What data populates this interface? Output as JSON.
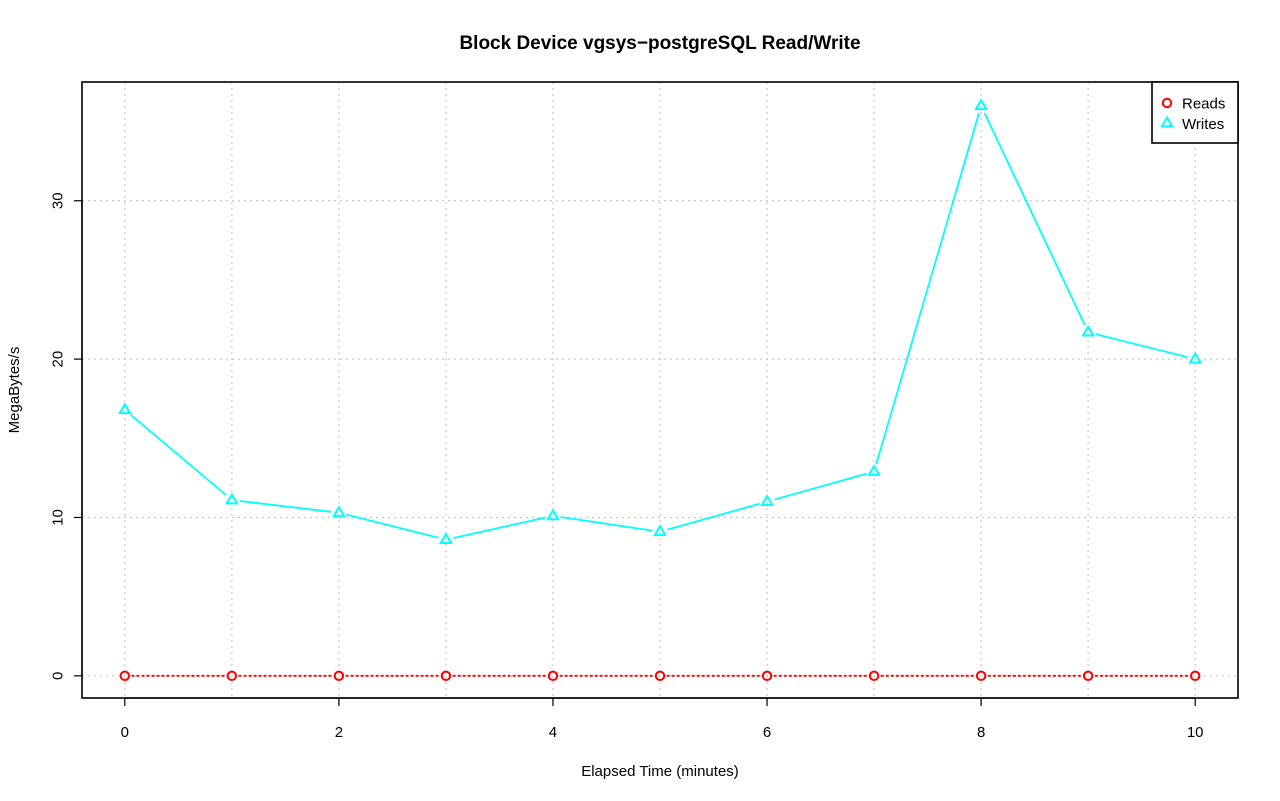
{
  "chart_data": {
    "type": "line",
    "title": "Block Device vgsys−postgreSQL Read/Write",
    "xlabel": "Elapsed Time (minutes)",
    "ylabel": "MegaBytes/s",
    "x": [
      0,
      1,
      2,
      3,
      4,
      5,
      6,
      7,
      8,
      9,
      10
    ],
    "xlim": [
      -0.4,
      10.4
    ],
    "ylim": [
      -1.4,
      37.5
    ],
    "x_ticks": [
      0,
      2,
      4,
      6,
      8,
      10
    ],
    "y_ticks": [
      0,
      10,
      20,
      30
    ],
    "grid": true,
    "legend_position": "top-right",
    "series": [
      {
        "name": "Reads",
        "color": "#ff0000",
        "marker": "circle",
        "line_style": "dashed",
        "values": [
          0,
          0,
          0,
          0,
          0,
          0,
          0,
          0,
          0,
          0,
          0
        ]
      },
      {
        "name": "Writes",
        "color": "#00ffff",
        "marker": "triangle",
        "line_style": "solid",
        "values": [
          16.8,
          11.1,
          10.3,
          8.6,
          10.1,
          9.1,
          11.0,
          12.9,
          36.0,
          21.7,
          20.0
        ]
      }
    ]
  }
}
